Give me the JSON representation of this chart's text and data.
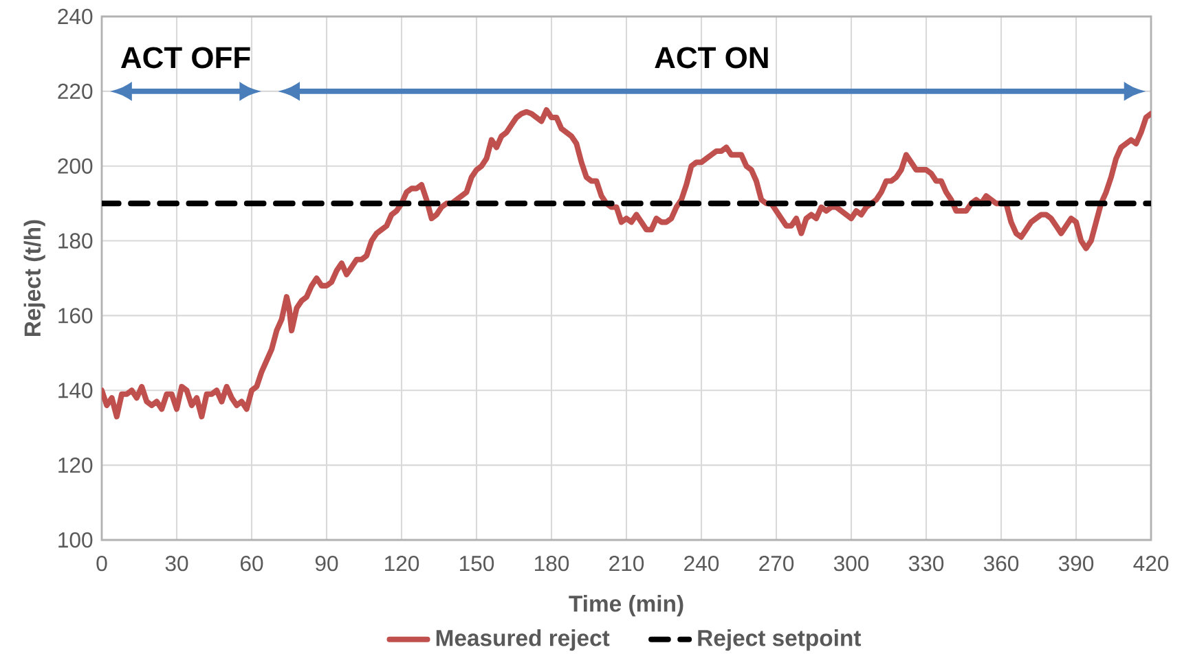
{
  "chart_data": {
    "type": "line",
    "xlabel": "Time (min)",
    "ylabel": "Reject (t/h)",
    "xlim": [
      0,
      420
    ],
    "ylim": [
      100,
      240
    ],
    "xticks": [
      0,
      30,
      60,
      90,
      120,
      150,
      180,
      210,
      240,
      270,
      300,
      330,
      360,
      390,
      420
    ],
    "yticks": [
      100,
      120,
      140,
      160,
      180,
      200,
      220,
      240
    ],
    "grid": true,
    "legend": "bottom",
    "annotations": [
      "ACT OFF",
      "ACT ON"
    ],
    "series": [
      {
        "name": "Measured reject",
        "color": "#c0504d",
        "line_style": "solid",
        "x": [
          0,
          2,
          4,
          6,
          8,
          10,
          12,
          14,
          16,
          18,
          20,
          22,
          24,
          26,
          28,
          30,
          32,
          34,
          36,
          38,
          40,
          42,
          44,
          46,
          48,
          50,
          52,
          54,
          56,
          58,
          60,
          62,
          64,
          66,
          68,
          70,
          72,
          74,
          75,
          76,
          78,
          80,
          82,
          84,
          86,
          88,
          90,
          92,
          94,
          96,
          98,
          100,
          102,
          104,
          106,
          108,
          110,
          112,
          114,
          116,
          118,
          120,
          122,
          124,
          126,
          128,
          130,
          132,
          134,
          136,
          138,
          140,
          142,
          144,
          146,
          148,
          150,
          152,
          154,
          156,
          158,
          160,
          162,
          164,
          166,
          168,
          170,
          172,
          174,
          176,
          178,
          180,
          182,
          184,
          186,
          188,
          190,
          192,
          194,
          196,
          198,
          200,
          202,
          204,
          206,
          208,
          210,
          212,
          214,
          216,
          218,
          220,
          222,
          224,
          226,
          228,
          230,
          232,
          234,
          236,
          238,
          240,
          242,
          244,
          246,
          248,
          250,
          252,
          254,
          256,
          258,
          260,
          262,
          264,
          266,
          268,
          270,
          272,
          274,
          276,
          278,
          280,
          282,
          284,
          286,
          288,
          290,
          292,
          294,
          296,
          298,
          300,
          302,
          304,
          306,
          308,
          310,
          312,
          314,
          316,
          318,
          320,
          322,
          324,
          326,
          328,
          330,
          332,
          334,
          336,
          338,
          340,
          342,
          344,
          346,
          348,
          350,
          352,
          354,
          356,
          358,
          360,
          362,
          364,
          366,
          368,
          370,
          372,
          374,
          376,
          378,
          380,
          382,
          384,
          386,
          388,
          390,
          392,
          394,
          396,
          398,
          400,
          402,
          404,
          406,
          408,
          410,
          412,
          414,
          416,
          418,
          420
        ],
        "values": [
          140,
          136,
          138,
          133,
          139,
          139,
          140,
          138,
          141,
          137,
          136,
          137,
          135,
          139,
          139,
          135,
          141,
          140,
          136,
          138,
          133,
          139,
          139,
          140,
          137,
          141,
          138,
          136,
          137,
          135,
          140,
          141,
          145,
          148,
          151,
          156,
          159,
          165,
          162,
          156,
          162,
          164,
          165,
          168,
          170,
          168,
          168,
          169,
          172,
          174,
          171,
          173,
          175,
          175,
          176,
          180,
          182,
          183,
          184,
          187,
          188,
          190,
          193,
          194,
          194,
          195,
          191,
          186,
          187,
          189,
          190,
          190,
          191,
          192,
          193,
          197,
          199,
          200,
          202,
          207,
          205,
          208,
          209,
          211,
          213,
          214,
          214.5,
          214,
          213,
          212,
          215,
          213,
          213,
          210,
          209,
          208,
          206,
          201,
          197,
          196,
          196,
          192,
          190,
          189,
          189,
          185,
          186,
          185,
          187,
          185,
          183,
          183,
          186,
          185,
          185,
          186,
          189,
          191,
          195,
          200,
          201,
          201,
          202,
          203,
          204,
          204,
          205,
          203,
          203,
          203,
          200,
          199,
          196,
          191,
          190,
          190,
          188,
          186,
          184,
          184,
          186,
          182,
          186,
          187,
          186,
          189,
          188,
          189,
          189,
          188,
          187,
          186,
          188,
          187,
          189,
          190,
          191,
          193,
          196,
          196,
          197,
          199,
          203,
          201,
          199,
          199,
          199,
          198,
          196,
          196,
          193,
          191,
          188,
          188,
          188,
          190,
          191,
          190,
          192,
          191,
          190,
          190,
          190,
          185,
          182,
          181,
          183,
          185,
          186,
          187,
          187,
          186,
          184,
          182,
          184,
          186,
          185,
          180,
          178,
          180,
          185,
          190,
          193,
          197,
          202,
          205,
          206,
          207,
          206,
          209,
          213,
          214
        ]
      },
      {
        "name": "Reject setpoint",
        "color": "#000000",
        "line_style": "dashed",
        "x": [
          0,
          420
        ],
        "values": [
          190,
          190
        ]
      }
    ]
  }
}
